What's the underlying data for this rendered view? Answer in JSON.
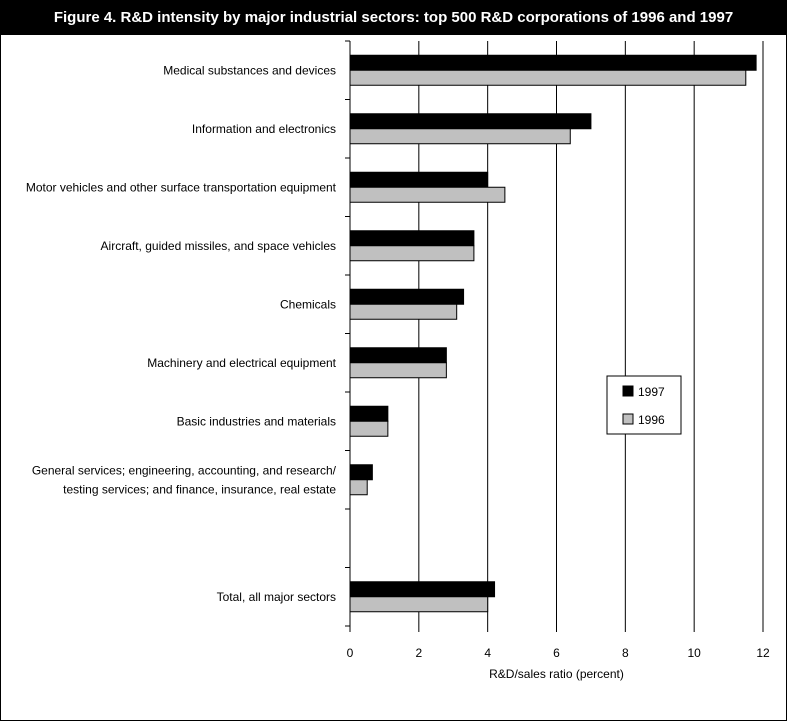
{
  "chart_data": {
    "type": "bar",
    "orientation": "horizontal",
    "title": "Figure 4. R&D intensity by major industrial sectors: top 500 R&D corporations of 1996 and 1997",
    "xlabel": "R&D/sales ratio (percent)",
    "ylabel": "",
    "xlim": [
      0,
      12
    ],
    "xticks": [
      0,
      2,
      4,
      6,
      8,
      10,
      12
    ],
    "grid": true,
    "legend_position": "right",
    "categories": [
      [
        "Medical substances and devices"
      ],
      [
        "Information and electronics"
      ],
      [
        "Motor vehicles and other surface transportation equipment"
      ],
      [
        "Aircraft, guided missiles, and space vehicles"
      ],
      [
        "Chemicals"
      ],
      [
        "Machinery and electrical equipment"
      ],
      [
        "Basic industries and materials"
      ],
      [
        "General services; engineering, accounting, and research/",
        "testing services; and finance, insurance, real estate"
      ],
      [],
      [
        "Total, all major sectors"
      ]
    ],
    "series": [
      {
        "name": "1997",
        "color": "#000000",
        "values": [
          11.8,
          7.0,
          4.0,
          3.6,
          3.3,
          2.8,
          1.1,
          0.65,
          null,
          4.2
        ]
      },
      {
        "name": "1996",
        "color": "#c0c0c0",
        "values": [
          11.5,
          6.4,
          4.5,
          3.6,
          3.1,
          2.8,
          1.1,
          0.5,
          null,
          4.0
        ]
      }
    ]
  }
}
